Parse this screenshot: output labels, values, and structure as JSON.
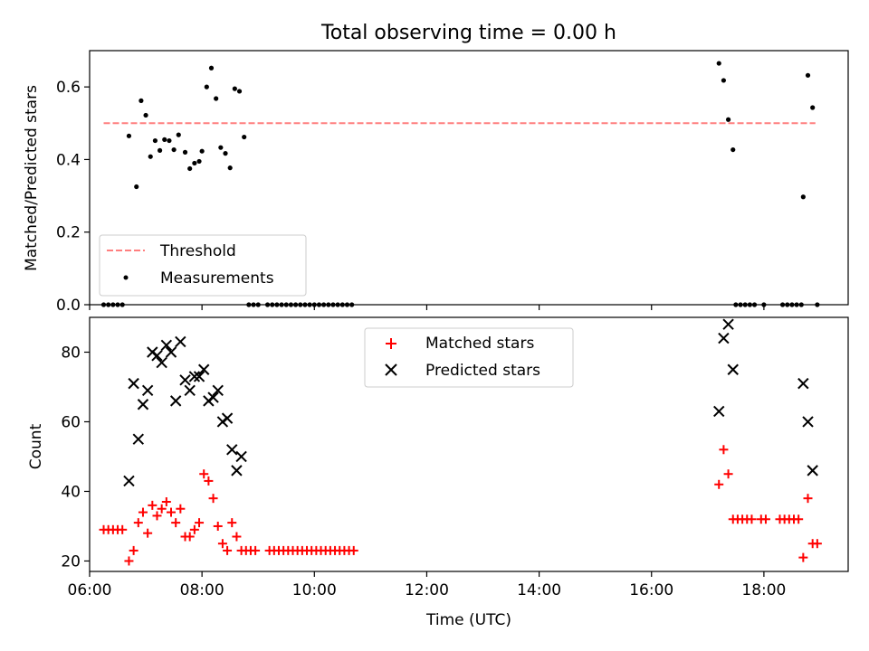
{
  "chart_data": [
    {
      "type": "scatter",
      "title": "Total observing time = 0.00 h",
      "xlabel": "",
      "ylabel": "Matched/Predicted stars",
      "xlim": [
        "06:00",
        "19:30"
      ],
      "ylim": [
        0,
        0.7
      ],
      "yticks": [
        "0.0",
        "0.2",
        "0.4",
        "0.6"
      ],
      "grid": false,
      "legend": "lower-left",
      "threshold": {
        "name": "Threshold",
        "value": 0.5,
        "x": [
          "06:15",
          "18:55"
        ],
        "color": "#ff7f7f",
        "style": "dashed"
      },
      "series": [
        {
          "name": "Measurements",
          "color": "#000000",
          "marker": "dot",
          "points": [
            [
              "06:15",
              0
            ],
            [
              "06:20",
              0
            ],
            [
              "06:25",
              0
            ],
            [
              "06:30",
              0
            ],
            [
              "06:35",
              0
            ],
            [
              "06:42",
              0.465
            ],
            [
              "06:50",
              0.325
            ],
            [
              "06:55",
              0.562
            ],
            [
              "07:00",
              0.522
            ],
            [
              "07:05",
              0.408
            ],
            [
              "07:10",
              0.452
            ],
            [
              "07:15",
              0.425
            ],
            [
              "07:20",
              0.455
            ],
            [
              "07:25",
              0.452
            ],
            [
              "07:30",
              0.427
            ],
            [
              "07:35",
              0.468
            ],
            [
              "07:42",
              0.42
            ],
            [
              "07:47",
              0.375
            ],
            [
              "07:52",
              0.39
            ],
            [
              "07:57",
              0.395
            ],
            [
              "08:00",
              0.423
            ],
            [
              "08:05",
              0.6
            ],
            [
              "08:10",
              0.652
            ],
            [
              "08:15",
              0.568
            ],
            [
              "08:20",
              0.433
            ],
            [
              "08:25",
              0.417
            ],
            [
              "08:30",
              0.377
            ],
            [
              "08:35",
              0.595
            ],
            [
              "08:40",
              0.588
            ],
            [
              "08:45",
              0.462
            ],
            [
              "08:50",
              0
            ],
            [
              "08:55",
              0
            ],
            [
              "09:00",
              0
            ],
            [
              "09:10",
              0
            ],
            [
              "09:15",
              0
            ],
            [
              "09:20",
              0
            ],
            [
              "09:25",
              0
            ],
            [
              "09:30",
              0
            ],
            [
              "09:35",
              0
            ],
            [
              "09:40",
              0
            ],
            [
              "09:45",
              0
            ],
            [
              "09:50",
              0
            ],
            [
              "09:55",
              0
            ],
            [
              "10:00",
              0
            ],
            [
              "10:05",
              0
            ],
            [
              "10:10",
              0
            ],
            [
              "10:15",
              0
            ],
            [
              "10:20",
              0
            ],
            [
              "10:25",
              0
            ],
            [
              "10:30",
              0
            ],
            [
              "10:35",
              0
            ],
            [
              "10:40",
              0
            ],
            [
              "17:12",
              0.665
            ],
            [
              "17:17",
              0.618
            ],
            [
              "17:22",
              0.51
            ],
            [
              "17:27",
              0.427
            ],
            [
              "17:30",
              0
            ],
            [
              "17:35",
              0
            ],
            [
              "17:40",
              0
            ],
            [
              "17:45",
              0
            ],
            [
              "17:50",
              0
            ],
            [
              "18:00",
              0
            ],
            [
              "18:20",
              0
            ],
            [
              "18:25",
              0
            ],
            [
              "18:30",
              0
            ],
            [
              "18:35",
              0
            ],
            [
              "18:40",
              0
            ],
            [
              "18:42",
              0.297
            ],
            [
              "18:47",
              0.632
            ],
            [
              "18:52",
              0.543
            ],
            [
              "18:57",
              0
            ]
          ]
        }
      ]
    },
    {
      "type": "scatter",
      "title": "",
      "xlabel": "Time (UTC)",
      "ylabel": "Count",
      "xlim": [
        "06:00",
        "19:30"
      ],
      "ylim": [
        17,
        90
      ],
      "xticks": [
        "06:00",
        "08:00",
        "10:00",
        "12:00",
        "14:00",
        "16:00",
        "18:00"
      ],
      "yticks": [
        "20",
        "40",
        "60",
        "80"
      ],
      "grid": false,
      "legend": "upper-center",
      "series": [
        {
          "name": "Matched stars",
          "color": "#ff0000",
          "marker": "plus",
          "points": [
            [
              "06:15",
              29
            ],
            [
              "06:20",
              29
            ],
            [
              "06:25",
              29
            ],
            [
              "06:30",
              29
            ],
            [
              "06:35",
              29
            ],
            [
              "06:42",
              20
            ],
            [
              "06:47",
              23
            ],
            [
              "06:52",
              31
            ],
            [
              "06:57",
              34
            ],
            [
              "07:02",
              28
            ],
            [
              "07:07",
              36
            ],
            [
              "07:12",
              33
            ],
            [
              "07:17",
              35
            ],
            [
              "07:22",
              37
            ],
            [
              "07:27",
              34
            ],
            [
              "07:32",
              31
            ],
            [
              "07:37",
              35
            ],
            [
              "07:42",
              27
            ],
            [
              "07:47",
              27
            ],
            [
              "07:52",
              29
            ],
            [
              "07:57",
              31
            ],
            [
              "08:02",
              45
            ],
            [
              "08:07",
              43
            ],
            [
              "08:12",
              38
            ],
            [
              "08:17",
              30
            ],
            [
              "08:22",
              25
            ],
            [
              "08:27",
              23
            ],
            [
              "08:32",
              31
            ],
            [
              "08:37",
              27
            ],
            [
              "08:42",
              23
            ],
            [
              "08:47",
              23
            ],
            [
              "08:52",
              23
            ],
            [
              "08:57",
              23
            ],
            [
              "09:12",
              23
            ],
            [
              "09:17",
              23
            ],
            [
              "09:22",
              23
            ],
            [
              "09:27",
              23
            ],
            [
              "09:32",
              23
            ],
            [
              "09:37",
              23
            ],
            [
              "09:42",
              23
            ],
            [
              "09:47",
              23
            ],
            [
              "09:52",
              23
            ],
            [
              "09:57",
              23
            ],
            [
              "10:02",
              23
            ],
            [
              "10:07",
              23
            ],
            [
              "10:12",
              23
            ],
            [
              "10:17",
              23
            ],
            [
              "10:22",
              23
            ],
            [
              "10:27",
              23
            ],
            [
              "10:32",
              23
            ],
            [
              "10:37",
              23
            ],
            [
              "10:42",
              23
            ],
            [
              "17:12",
              42
            ],
            [
              "17:17",
              52
            ],
            [
              "17:22",
              45
            ],
            [
              "17:27",
              32
            ],
            [
              "17:32",
              32
            ],
            [
              "17:37",
              32
            ],
            [
              "17:42",
              32
            ],
            [
              "17:47",
              32
            ],
            [
              "17:57",
              32
            ],
            [
              "18:02",
              32
            ],
            [
              "18:17",
              32
            ],
            [
              "18:22",
              32
            ],
            [
              "18:27",
              32
            ],
            [
              "18:32",
              32
            ],
            [
              "18:37",
              32
            ],
            [
              "18:42",
              21
            ],
            [
              "18:47",
              38
            ],
            [
              "18:52",
              25
            ],
            [
              "18:57",
              25
            ]
          ]
        },
        {
          "name": "Predicted stars",
          "color": "#000000",
          "marker": "x",
          "points": [
            [
              "06:42",
              43
            ],
            [
              "06:47",
              71
            ],
            [
              "06:52",
              55
            ],
            [
              "06:57",
              65
            ],
            [
              "07:02",
              69
            ],
            [
              "07:07",
              80
            ],
            [
              "07:12",
              79
            ],
            [
              "07:17",
              77
            ],
            [
              "07:22",
              82
            ],
            [
              "07:27",
              80
            ],
            [
              "07:32",
              66
            ],
            [
              "07:37",
              83
            ],
            [
              "07:42",
              72
            ],
            [
              "07:47",
              69
            ],
            [
              "07:52",
              73
            ],
            [
              "07:57",
              73
            ],
            [
              "08:02",
              75
            ],
            [
              "08:07",
              66
            ],
            [
              "08:12",
              67
            ],
            [
              "08:17",
              69
            ],
            [
              "08:22",
              60
            ],
            [
              "08:27",
              61
            ],
            [
              "08:32",
              52
            ],
            [
              "08:37",
              46
            ],
            [
              "08:42",
              50
            ],
            [
              "17:12",
              63
            ],
            [
              "17:17",
              84
            ],
            [
              "17:22",
              88
            ],
            [
              "17:27",
              75
            ],
            [
              "18:42",
              71
            ],
            [
              "18:47",
              60
            ],
            [
              "18:52",
              46
            ]
          ]
        }
      ]
    }
  ]
}
